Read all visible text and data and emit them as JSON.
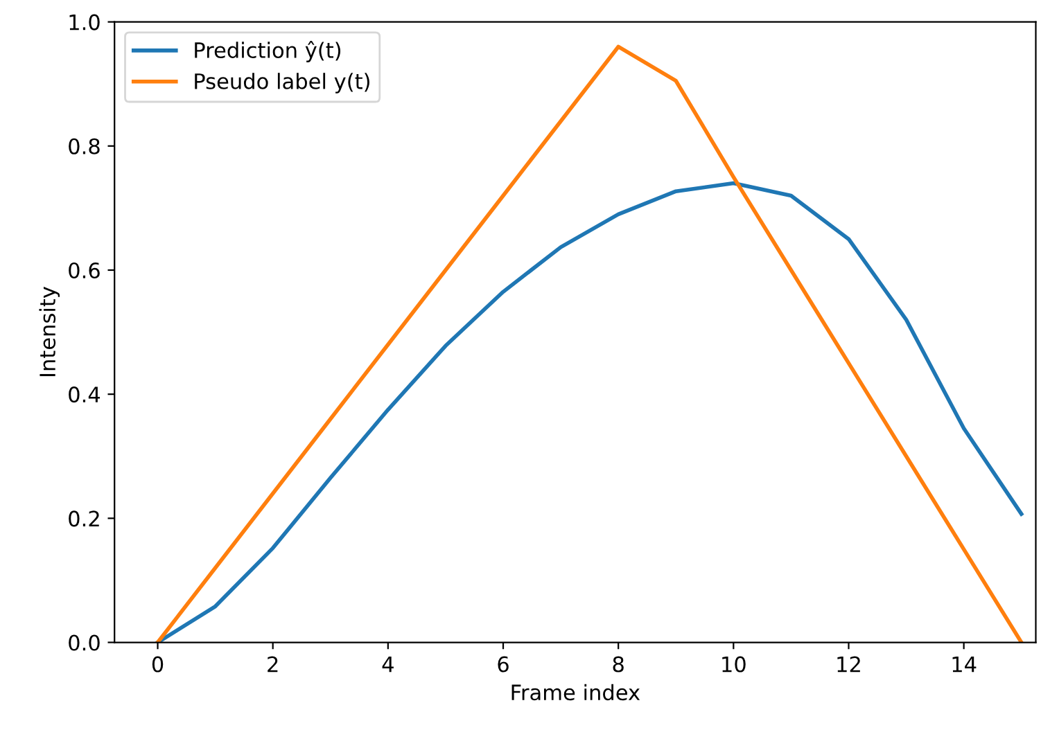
{
  "chart_data": {
    "type": "line",
    "xlabel": "Frame index",
    "ylabel": "Intensity",
    "x": [
      0,
      1,
      2,
      3,
      4,
      5,
      6,
      7,
      8,
      9,
      10,
      11,
      12,
      13,
      14,
      15
    ],
    "series": [
      {
        "name": "Prediction ŷ(t)",
        "color": "#1f77b4",
        "values": [
          0,
          0.058,
          0.152,
          0.265,
          0.375,
          0.478,
          0.565,
          0.637,
          0.69,
          0.727,
          0.74,
          0.72,
          0.65,
          0.52,
          0.345,
          0.207
        ]
      },
      {
        "name": "Pseudo label y(t)",
        "color": "#ff7f0e",
        "values": [
          0,
          0.12,
          0.24,
          0.36,
          0.48,
          0.6,
          0.72,
          0.84,
          0.96,
          0.905,
          0.75,
          0.6,
          0.45,
          0.3,
          0.15,
          0
        ]
      }
    ],
    "xlim": [
      -0.75,
      15.25
    ],
    "ylim": [
      0,
      1.0
    ],
    "xticks": [
      0,
      2,
      4,
      6,
      8,
      10,
      12,
      14
    ],
    "yticks": [
      {
        "value": 0,
        "label": "0.0"
      },
      0.2,
      0.4,
      0.6,
      0.8,
      {
        "value": 1,
        "label": "1.0"
      }
    ],
    "legend": "top left",
    "grid": false,
    "marker": "none",
    "line_style": "solid"
  }
}
